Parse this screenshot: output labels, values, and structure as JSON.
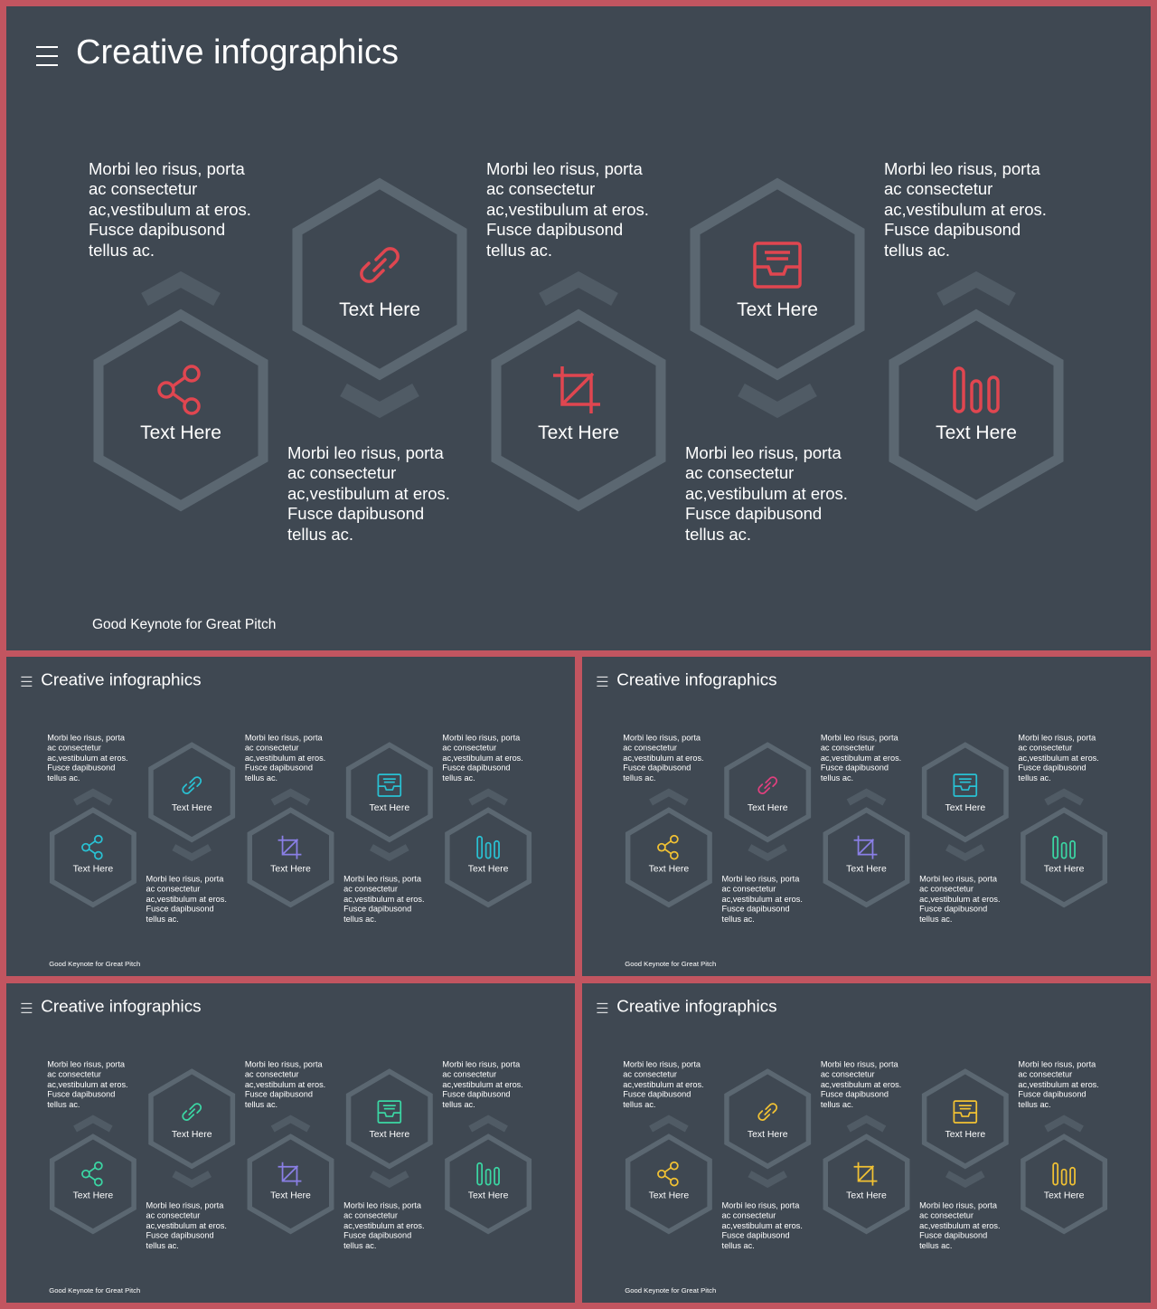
{
  "slides": [
    {
      "title": "Creative infographics",
      "footer": "Good Keynote for Great Pitch",
      "colors": [
        "#e04650",
        "#e04650",
        "#e04650",
        "#e04650",
        "#e04650",
        "#e04650"
      ]
    },
    {
      "title": "Creative infographics",
      "footer": "Good Keynote for Great Pitch",
      "colors": [
        "#29c1d3",
        "#29c1d3",
        "#8a7fe6",
        "#29c1d3",
        "#29c1d3",
        "#29c1d3"
      ]
    },
    {
      "title": "Creative infographics",
      "footer": "Good Keynote for Great Pitch",
      "colors": [
        "#f2c233",
        "#e0407e",
        "#8a7fe6",
        "#29c1d3",
        "#3bd7a4",
        "#3bd7a4"
      ]
    },
    {
      "title": "Creative infographics",
      "footer": "Good Keynote for Great Pitch",
      "colors": [
        "#3bd7a4",
        "#3bd7a4",
        "#8a7fe6",
        "#3bd7a4",
        "#3bd7a4",
        "#3bd7a4"
      ]
    },
    {
      "title": "Creative infographics",
      "footer": "Good Keynote for Great Pitch",
      "colors": [
        "#f2c233",
        "#f2c233",
        "#f2c233",
        "#f2c233",
        "#f2c233",
        "#f2c233"
      ]
    }
  ],
  "items": [
    {
      "label": "Text Here",
      "icon": "share-icon",
      "text": "Morbi leo risus, porta\nac consectetur\nac,vestibulum at eros.\nFusce dapibusond\ntellus ac."
    },
    {
      "label": "Text Here",
      "icon": "link-icon",
      "text": "Morbi leo risus, porta\nac consectetur\nac,vestibulum at eros.\nFusce dapibusond\ntellus ac."
    },
    {
      "label": "Text Here",
      "icon": "crop-icon",
      "text": "Morbi leo risus, porta\nac consectetur\nac,vestibulum at eros.\nFusce dapibusond\ntellus ac."
    },
    {
      "label": "Text Here",
      "icon": "inbox-icon",
      "text": "Morbi leo risus, porta\nac consectetur\nac,vestibulum at eros.\nFusce dapibusond\ntellus ac."
    },
    {
      "label": "Text Here",
      "icon": "bar-chart-icon",
      "text": "Morbi leo risus, porta\nac consectetur\nac,vestibulum at eros.\nFusce dapibusond\ntellus ac."
    }
  ],
  "theme": {
    "background": "#3f4852",
    "frame": "#c25560",
    "hexagon_stroke": "#5b6771",
    "chevron": "#505b65",
    "text": "#ffffff"
  }
}
